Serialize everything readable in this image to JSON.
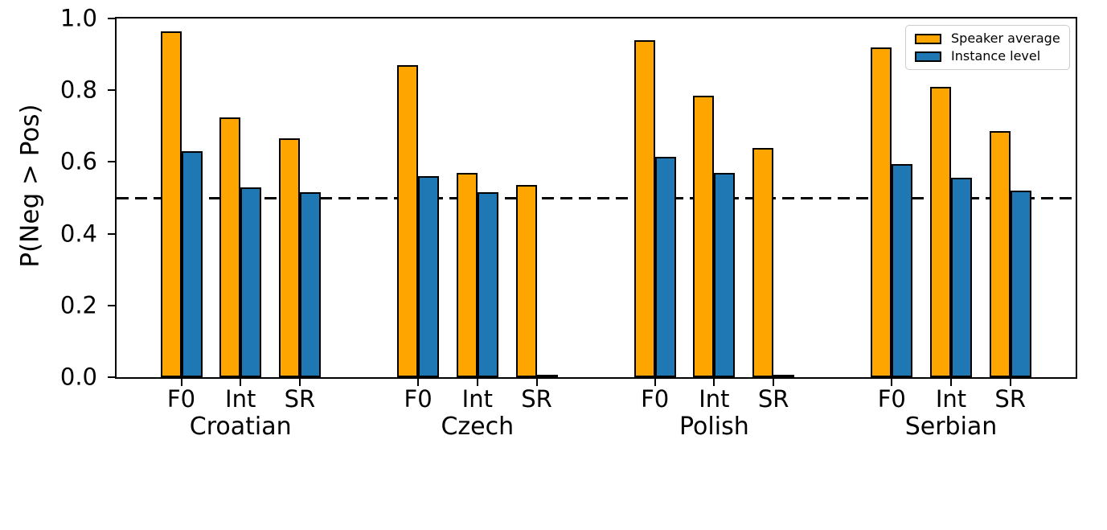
{
  "chart_data": {
    "type": "bar",
    "title": "",
    "xlabel": "",
    "ylabel": "P(Neg > Pos)",
    "ylim": [
      0.0,
      1.0
    ],
    "yticks": [
      "0.0",
      "0.2",
      "0.4",
      "0.6",
      "0.8",
      "1.0"
    ],
    "ytick_values": [
      0.0,
      0.2,
      0.4,
      0.6,
      0.8,
      1.0
    ],
    "groups": [
      "Croatian",
      "Czech",
      "Polish",
      "Serbian"
    ],
    "categories": [
      "F0",
      "Int",
      "SR"
    ],
    "series": [
      {
        "name": "Speaker average",
        "color": "#FFA500",
        "values": [
          [
            0.965,
            0.725,
            0.665
          ],
          [
            0.87,
            0.57,
            0.535
          ],
          [
            0.94,
            0.785,
            0.64
          ],
          [
            0.92,
            0.81,
            0.685
          ]
        ]
      },
      {
        "name": "Instance level",
        "color": "#1F77B4",
        "values": [
          [
            0.63,
            0.53,
            0.515
          ],
          [
            0.56,
            0.515,
            0.0
          ],
          [
            0.615,
            0.57,
            0.0
          ],
          [
            0.595,
            0.555,
            0.52
          ]
        ]
      }
    ],
    "reference_line": {
      "y": 0.5,
      "style": "dashed",
      "color": "#000000"
    },
    "legend_position": "upper right",
    "grid": false,
    "bar_edge_color": "#000000"
  }
}
